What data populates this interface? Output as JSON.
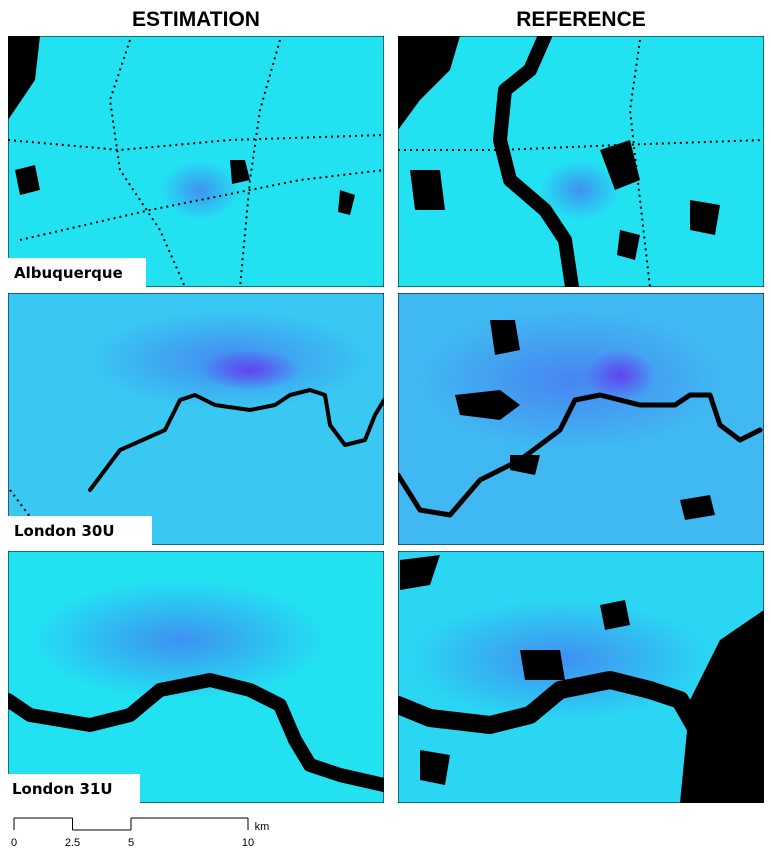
{
  "header": {
    "columns": [
      "ESTIMATION",
      "REFERENCE"
    ]
  },
  "rows": [
    {
      "label": "Albuquerque"
    },
    {
      "label": "London 30U"
    },
    {
      "label": "London 31U"
    }
  ],
  "scale_bar": {
    "ticks": [
      0,
      2.5,
      5,
      10
    ],
    "unit": "km"
  }
}
